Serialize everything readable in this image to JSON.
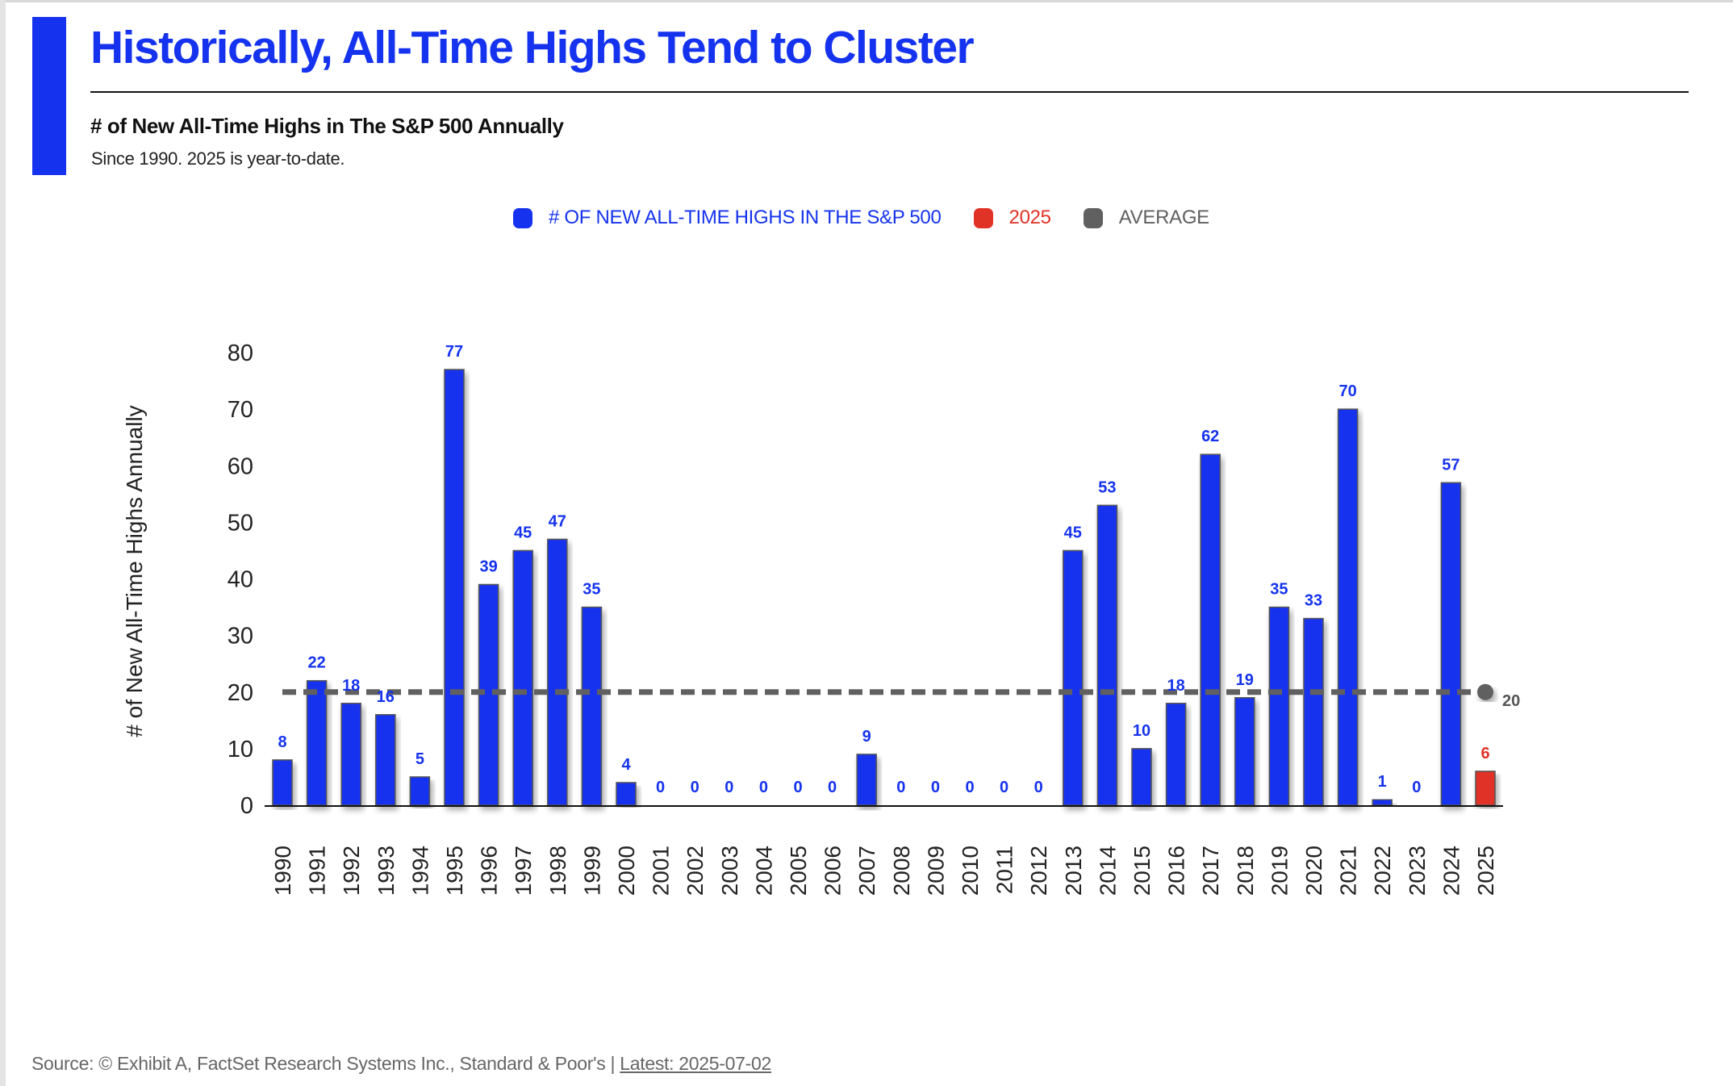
{
  "header": {
    "title": "Historically, All-Time Highs Tend to Cluster",
    "subtitle": "# of New All-Time Highs in The S&P 500 Annually",
    "note": "Since 1990. 2025 is year-to-date."
  },
  "legend": [
    {
      "label": "# OF NEW ALL-TIME HIGHS IN THE S&P 500",
      "color": "#1533EE"
    },
    {
      "label": "2025",
      "color": "#E03326"
    },
    {
      "label": "AVERAGE",
      "color": "#606060"
    }
  ],
  "footer": {
    "source": "Source: © Exhibit A, FactSet Research Systems Inc., Standard & Poor's | ",
    "latest": "Latest: 2025-07-02"
  },
  "chart_data": {
    "type": "bar",
    "title": "# of New All-Time Highs in The S&P 500 Annually",
    "xlabel": "",
    "ylabel": "# of New All-Time Highs Annually",
    "ylim": [
      0,
      80
    ],
    "yticks": [
      "0",
      "10",
      "20",
      "30",
      "40",
      "50",
      "60",
      "70",
      "80"
    ],
    "grid": false,
    "legend_position": "top-center",
    "categories": [
      "1990",
      "1991",
      "1992",
      "1993",
      "1994",
      "1995",
      "1996",
      "1997",
      "1998",
      "1999",
      "2000",
      "2001",
      "2002",
      "2003",
      "2004",
      "2005",
      "2006",
      "2007",
      "2008",
      "2009",
      "2010",
      "2011",
      "2012",
      "2013",
      "2014",
      "2015",
      "2016",
      "2017",
      "2018",
      "2019",
      "2020",
      "2021",
      "2022",
      "2023",
      "2024",
      "2025"
    ],
    "series": [
      {
        "name": "# of New All-Time Highs in the S&P 500",
        "color": "#1533EE",
        "values": [
          8,
          22,
          18,
          16,
          5,
          77,
          39,
          45,
          47,
          35,
          4,
          0,
          0,
          0,
          0,
          0,
          0,
          9,
          0,
          0,
          0,
          0,
          0,
          45,
          53,
          10,
          18,
          62,
          19,
          35,
          33,
          70,
          1,
          0,
          57,
          null
        ]
      },
      {
        "name": "2025",
        "color": "#E03326",
        "values": [
          null,
          null,
          null,
          null,
          null,
          null,
          null,
          null,
          null,
          null,
          null,
          null,
          null,
          null,
          null,
          null,
          null,
          null,
          null,
          null,
          null,
          null,
          null,
          null,
          null,
          null,
          null,
          null,
          null,
          null,
          null,
          null,
          null,
          null,
          null,
          6
        ]
      }
    ],
    "average": {
      "name": "Average",
      "value": 20,
      "label": "20",
      "color": "#606060"
    }
  }
}
